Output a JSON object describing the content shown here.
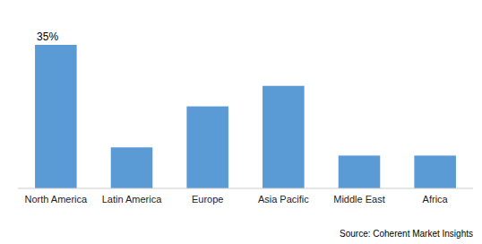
{
  "chart_data": {
    "type": "bar",
    "categories": [
      "North America",
      "Latin America",
      "Europe",
      "Asia Pacific",
      "Middle East",
      "Africa"
    ],
    "values": [
      35,
      10,
      20,
      25,
      8,
      8
    ],
    "color": "#5B9BD5",
    "ylim": [
      0,
      42
    ],
    "grid": false,
    "tick_labels": "x",
    "annotations": [
      {
        "text": "35%",
        "x": "North America",
        "y": 35
      }
    ],
    "source": "Source: Coherent Market Insights"
  }
}
